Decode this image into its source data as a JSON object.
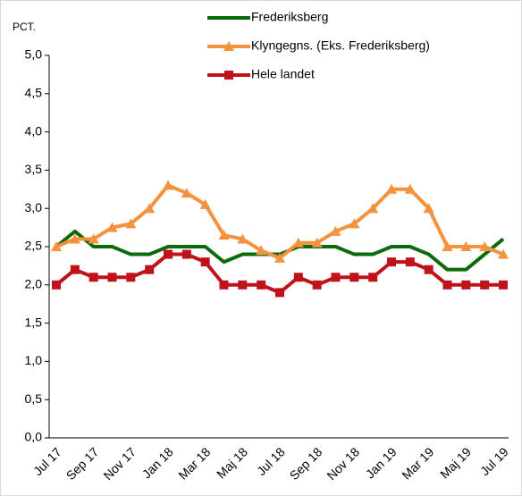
{
  "chart_data": {
    "type": "line",
    "y_unit_label": "PCT.",
    "categories": [
      "Jul 17",
      null,
      "Sep 17",
      null,
      "Nov 17",
      null,
      "Jan 18",
      null,
      "Mar 18",
      null,
      "Maj 18",
      null,
      "Jul 18",
      null,
      "Sep 18",
      null,
      "Nov 18",
      null,
      "Jan 19",
      null,
      "Mar 19",
      null,
      "Maj 19",
      null,
      "Jul 19"
    ],
    "series": [
      {
        "name": "Frederiksberg",
        "color": "#0b6b0b",
        "marker": "none",
        "values": [
          2.5,
          2.7,
          2.5,
          2.5,
          2.4,
          2.4,
          2.5,
          2.5,
          2.5,
          2.3,
          2.4,
          2.4,
          2.4,
          2.5,
          2.5,
          2.5,
          2.4,
          2.4,
          2.5,
          2.5,
          2.4,
          2.2,
          2.2,
          2.4,
          2.6
        ]
      },
      {
        "name": "Klyngegns. (Eks. Frederiksberg)",
        "color": "#f5923e",
        "marker": "triangle",
        "values": [
          2.5,
          2.6,
          2.6,
          2.75,
          2.8,
          3.0,
          3.3,
          3.2,
          3.05,
          2.65,
          2.6,
          2.45,
          2.35,
          2.55,
          2.55,
          2.7,
          2.8,
          3.0,
          3.25,
          3.25,
          3.0,
          2.5,
          2.5,
          2.5,
          2.4
        ]
      },
      {
        "name": "Hele landet",
        "color": "#c0121a",
        "marker": "square",
        "values": [
          2.0,
          2.2,
          2.1,
          2.1,
          2.1,
          2.2,
          2.4,
          2.4,
          2.3,
          2.0,
          2.0,
          2.0,
          1.9,
          2.1,
          2.0,
          2.1,
          2.1,
          2.1,
          2.3,
          2.3,
          2.2,
          2.0,
          2.0,
          2.0,
          2.0
        ]
      }
    ],
    "ylim": [
      0,
      5
    ],
    "yticks": [
      {
        "value": 0,
        "label": "0,0"
      },
      {
        "value": 0.5,
        "label": "0,5"
      },
      {
        "value": 1,
        "label": "1,0"
      },
      {
        "value": 1.5,
        "label": "1,5"
      },
      {
        "value": 2,
        "label": "2,0"
      },
      {
        "value": 2.5,
        "label": "2,5"
      },
      {
        "value": 3,
        "label": "3,0"
      },
      {
        "value": 3.5,
        "label": "3,5"
      },
      {
        "value": 4,
        "label": "4,0"
      },
      {
        "value": 4.5,
        "label": "4,5"
      },
      {
        "value": 5,
        "label": "5,0"
      }
    ],
    "grid": false,
    "legend": "top"
  }
}
